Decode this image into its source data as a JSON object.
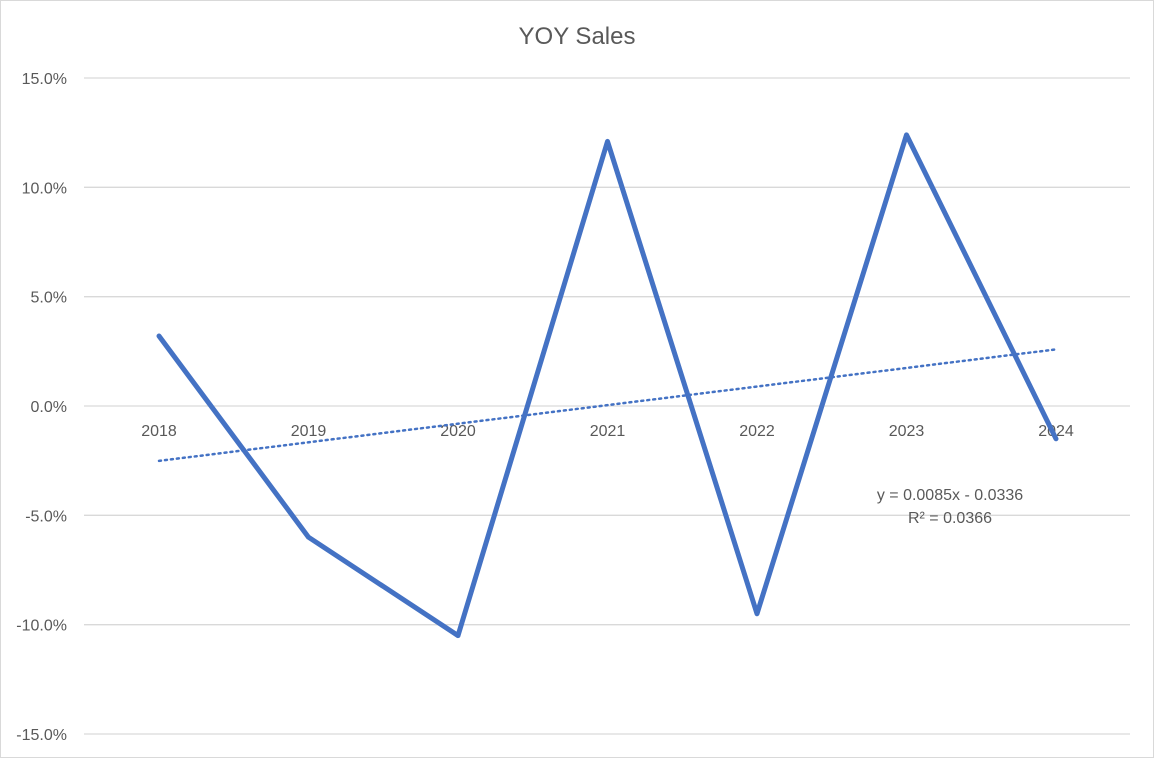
{
  "chart_data": {
    "type": "line",
    "title": "YOY Sales",
    "xlabel": "",
    "ylabel": "",
    "categories": [
      "2018",
      "2019",
      "2020",
      "2021",
      "2022",
      "2023",
      "2024"
    ],
    "series": [
      {
        "values": [
          0.032,
          -0.06,
          -0.105,
          0.121,
          -0.095,
          0.124,
          -0.015
        ],
        "color": "#4472c4"
      }
    ],
    "trendline": {
      "type": "linear",
      "slope": 0.0085,
      "intercept": -0.0336,
      "equation_label": "y = 0.0085x - 0.0336",
      "r2_label": "R² = 0.0366",
      "color": "#4472c4",
      "style": "dotted"
    },
    "ylim": [
      -0.15,
      0.15
    ],
    "yticks": [
      0.15,
      0.1,
      0.05,
      0.0,
      -0.05,
      -0.1,
      -0.15
    ],
    "ytick_labels": [
      "15.0%",
      "10.0%",
      "5.0%",
      "0.0%",
      "-5.0%",
      "-10.0%",
      "-15.0%"
    ],
    "grid": true,
    "legend": false
  }
}
